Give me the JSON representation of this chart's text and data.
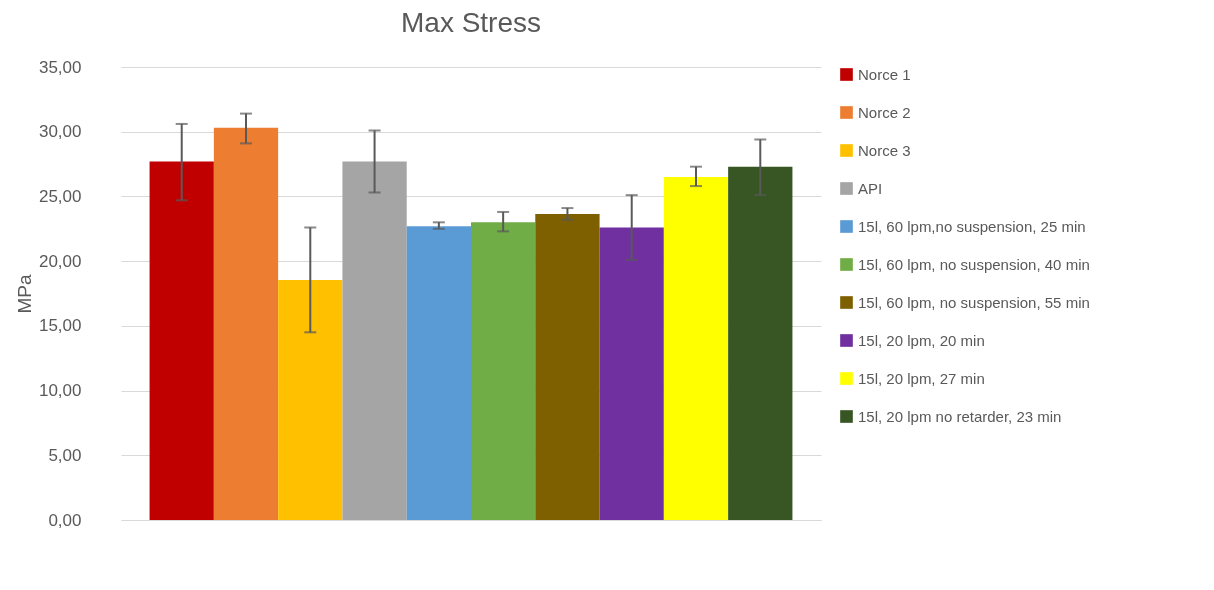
{
  "chart_data": {
    "type": "bar",
    "title": "Max Stress",
    "ylabel": "MPa",
    "categories": [
      null
    ],
    "ylim": [
      0,
      35
    ],
    "yticks": [
      {
        "value": 0,
        "label": "0,00"
      },
      {
        "value": 5,
        "label": "5,00"
      },
      {
        "value": 10,
        "label": "10,00"
      },
      {
        "value": 15,
        "label": "15,00"
      },
      {
        "value": 20,
        "label": "20,00"
      },
      {
        "value": 25,
        "label": "25,00"
      },
      {
        "value": 30,
        "label": "30,00"
      },
      {
        "value": 35,
        "label": "35,00"
      }
    ],
    "grid": "y",
    "legend": "right",
    "series": [
      {
        "name": "Norce 1",
        "color": "#c00000",
        "values": [
          27.7
        ],
        "errors": [
          [
            24.7,
            30.6
          ]
        ]
      },
      {
        "name": "Norce 2",
        "color": "#ed7d31",
        "values": [
          30.3
        ],
        "errors": [
          [
            29.1,
            31.4
          ]
        ]
      },
      {
        "name": "Norce  3",
        "color": "#ffc000",
        "values": [
          18.55
        ],
        "errors": [
          [
            14.5,
            22.6
          ]
        ]
      },
      {
        "name": "API",
        "color": "#a5a5a5",
        "values": [
          27.7
        ],
        "errors": [
          [
            25.3,
            30.1
          ]
        ]
      },
      {
        "name": "15l, 60 lpm,no suspension, 25 min",
        "color": "#5b9bd5",
        "values": [
          22.7
        ],
        "errors": [
          [
            22.5,
            23.0
          ]
        ]
      },
      {
        "name": "15l, 60 lpm, no suspension, 40 min",
        "color": "#70ad47",
        "values": [
          23.0
        ],
        "errors": [
          [
            22.3,
            23.8
          ]
        ]
      },
      {
        "name": "15l, 60 lpm, no suspension, 55 min",
        "color": "#7f6000",
        "values": [
          23.65
        ],
        "errors": [
          [
            23.2,
            24.1
          ]
        ]
      },
      {
        "name": "15l, 20 lpm, 20 min",
        "color": "#7030a0",
        "values": [
          22.6
        ],
        "errors": [
          [
            20.1,
            25.1
          ]
        ]
      },
      {
        "name": "15l, 20 lpm, 27 min",
        "color": "#ffff00",
        "values": [
          26.5
        ],
        "errors": [
          [
            25.8,
            27.3
          ]
        ]
      },
      {
        "name": "15l, 20 lpm no retarder, 23 min",
        "color": "#375623",
        "values": [
          27.3
        ],
        "errors": [
          [
            25.1,
            29.4
          ]
        ]
      }
    ]
  }
}
